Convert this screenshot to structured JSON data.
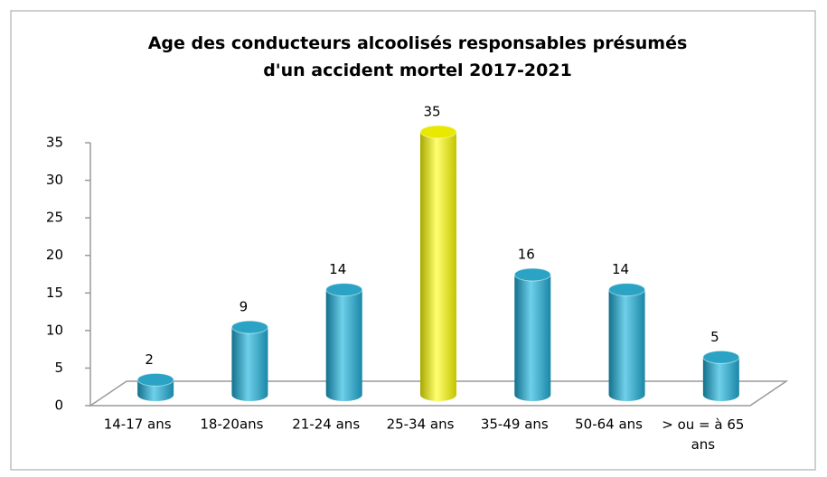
{
  "chart_data": {
    "type": "bar3d",
    "title": "Age des conducteurs alcoolisés responsables présumés d'un accident mortel 2017-2021",
    "categories": [
      "14-17 ans",
      "18-20ans",
      "21-24 ans",
      "25-34 ans",
      "35-49 ans",
      "50-64 ans",
      "> ou = à 65 ans"
    ],
    "values": [
      2,
      9,
      14,
      35,
      16,
      14,
      5
    ],
    "colors": [
      "#2aa3c4",
      "#2aa3c4",
      "#2aa3c4",
      "#e8e800",
      "#2aa3c4",
      "#2aa3c4",
      "#2aa3c4"
    ],
    "ylim": [
      0,
      35
    ],
    "yticks": [
      0,
      5,
      10,
      15,
      20,
      25,
      30,
      35
    ],
    "grid": false
  }
}
